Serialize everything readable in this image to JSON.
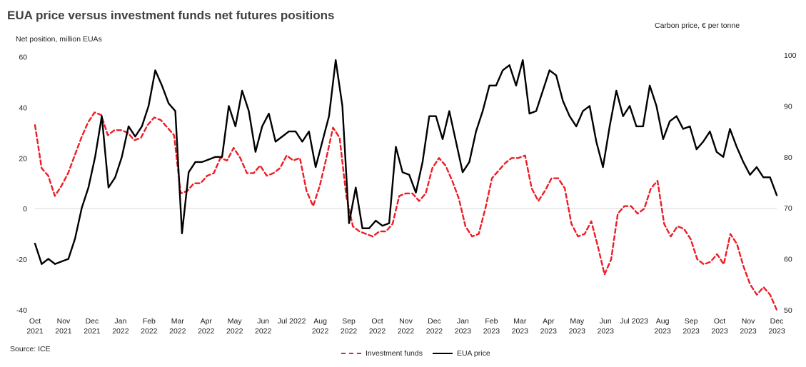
{
  "chart_data": {
    "type": "line",
    "title": "EUA price versus investment funds net futures positions",
    "ylabel_left": "Net position, million EUAs",
    "ylabel_right": "Carbon price, € per tonne",
    "source": "Source: ICE",
    "ylim_left": [
      -40,
      70
    ],
    "ylim_right": [
      50,
      100
    ],
    "xlim": [
      0,
      104
    ],
    "yticks_left": [
      -40,
      -20,
      0,
      20,
      40,
      60
    ],
    "yticks_right": [
      50,
      60,
      70,
      80,
      90,
      100
    ],
    "x_tick_labels": [
      {
        "x": 0,
        "line1": "Oct",
        "line2": "2021"
      },
      {
        "x": 4,
        "line1": "Nov",
        "line2": "2021"
      },
      {
        "x": 8,
        "line1": "Dec",
        "line2": "2021"
      },
      {
        "x": 12,
        "line1": "Jan",
        "line2": "2022"
      },
      {
        "x": 16,
        "line1": "Feb",
        "line2": "2022"
      },
      {
        "x": 20,
        "line1": "Mar",
        "line2": "2022"
      },
      {
        "x": 24,
        "line1": "Apr",
        "line2": "2022"
      },
      {
        "x": 28,
        "line1": "May",
        "line2": "2022"
      },
      {
        "x": 32,
        "line1": "Jun",
        "line2": "2022"
      },
      {
        "x": 36,
        "line1": "Jul 2022",
        "line2": ""
      },
      {
        "x": 40,
        "line1": "Aug",
        "line2": "2022"
      },
      {
        "x": 44,
        "line1": "Sep",
        "line2": "2022"
      },
      {
        "x": 48,
        "line1": "Oct",
        "line2": "2022"
      },
      {
        "x": 52,
        "line1": "Nov",
        "line2": "2022"
      },
      {
        "x": 56,
        "line1": "Dec",
        "line2": "2022"
      },
      {
        "x": 60,
        "line1": "Jan",
        "line2": "2023"
      },
      {
        "x": 64,
        "line1": "Feb",
        "line2": "2023"
      },
      {
        "x": 68,
        "line1": "Mar",
        "line2": "2023"
      },
      {
        "x": 72,
        "line1": "Apr",
        "line2": "2023"
      },
      {
        "x": 76,
        "line1": "May",
        "line2": "2023"
      },
      {
        "x": 80,
        "line1": "Jun",
        "line2": "2023"
      },
      {
        "x": 84,
        "line1": "Jul 2023",
        "line2": ""
      },
      {
        "x": 88,
        "line1": "Aug",
        "line2": "2023"
      },
      {
        "x": 92,
        "line1": "Sep",
        "line2": "2023"
      },
      {
        "x": 96,
        "line1": "Oct",
        "line2": "2023"
      },
      {
        "x": 100,
        "line1": "Nov",
        "line2": "2023"
      },
      {
        "x": 104,
        "line1": "Dec",
        "line2": "2023"
      }
    ],
    "legend_placement": "bottom-center",
    "grid": false,
    "series": [
      {
        "name": "Investment funds",
        "axis": "left",
        "color": "#ee1c25",
        "style": "dashed",
        "values": [
          33,
          16,
          13,
          5,
          9,
          14,
          21,
          28,
          34,
          38,
          37,
          29,
          31,
          31,
          30,
          27,
          28,
          33,
          36,
          35,
          32,
          29,
          6,
          7,
          10,
          10,
          13,
          14,
          20,
          19,
          24,
          20,
          14,
          14,
          17,
          13,
          14,
          16,
          21,
          19,
          20,
          7,
          1,
          9,
          20,
          32,
          28,
          5,
          -7,
          -9,
          -10,
          -11,
          -9,
          -9,
          -6,
          5,
          6,
          6,
          3,
          6,
          16,
          20,
          17,
          11,
          4,
          -7,
          -11,
          -10,
          0,
          12,
          15,
          18,
          20,
          20,
          21,
          8,
          3,
          7,
          12,
          12,
          8,
          -6,
          -11,
          -10,
          -5,
          -15,
          -26,
          -20,
          -2,
          1,
          1,
          -2,
          0,
          8,
          11,
          -6,
          -11,
          -7,
          -8,
          -12,
          -20,
          -22,
          -21,
          -18,
          -22,
          -10,
          -14,
          -23,
          -30,
          -34,
          -31,
          -34,
          -40
        ]
      },
      {
        "name": "EUA price",
        "axis": "right",
        "color": "#000000",
        "style": "solid",
        "values": [
          63,
          59,
          60,
          59,
          59.5,
          60,
          64,
          70,
          74,
          80,
          88,
          74,
          76,
          80,
          86,
          84,
          86,
          90,
          97,
          94,
          90.5,
          89,
          65,
          77,
          79,
          79,
          79.5,
          80,
          80,
          90,
          86,
          93,
          89,
          81,
          86,
          88.5,
          83,
          84,
          85,
          85,
          83,
          85,
          78,
          83,
          88,
          99,
          90,
          67,
          74,
          66,
          66,
          67.5,
          66.5,
          67,
          82,
          77,
          76.5,
          73,
          79,
          88,
          88,
          83.5,
          89,
          83,
          77,
          79,
          85,
          89,
          94,
          94,
          97,
          98,
          94,
          99,
          88.5,
          89,
          93,
          97,
          96,
          91,
          88,
          86,
          89,
          90,
          83,
          78,
          86,
          93,
          88,
          90,
          86,
          86,
          94,
          90,
          83.5,
          87,
          88,
          85.5,
          86,
          81.5,
          83,
          85,
          81,
          80,
          85.5,
          82,
          79,
          76.5,
          78,
          76,
          76,
          72.5
        ]
      }
    ]
  }
}
